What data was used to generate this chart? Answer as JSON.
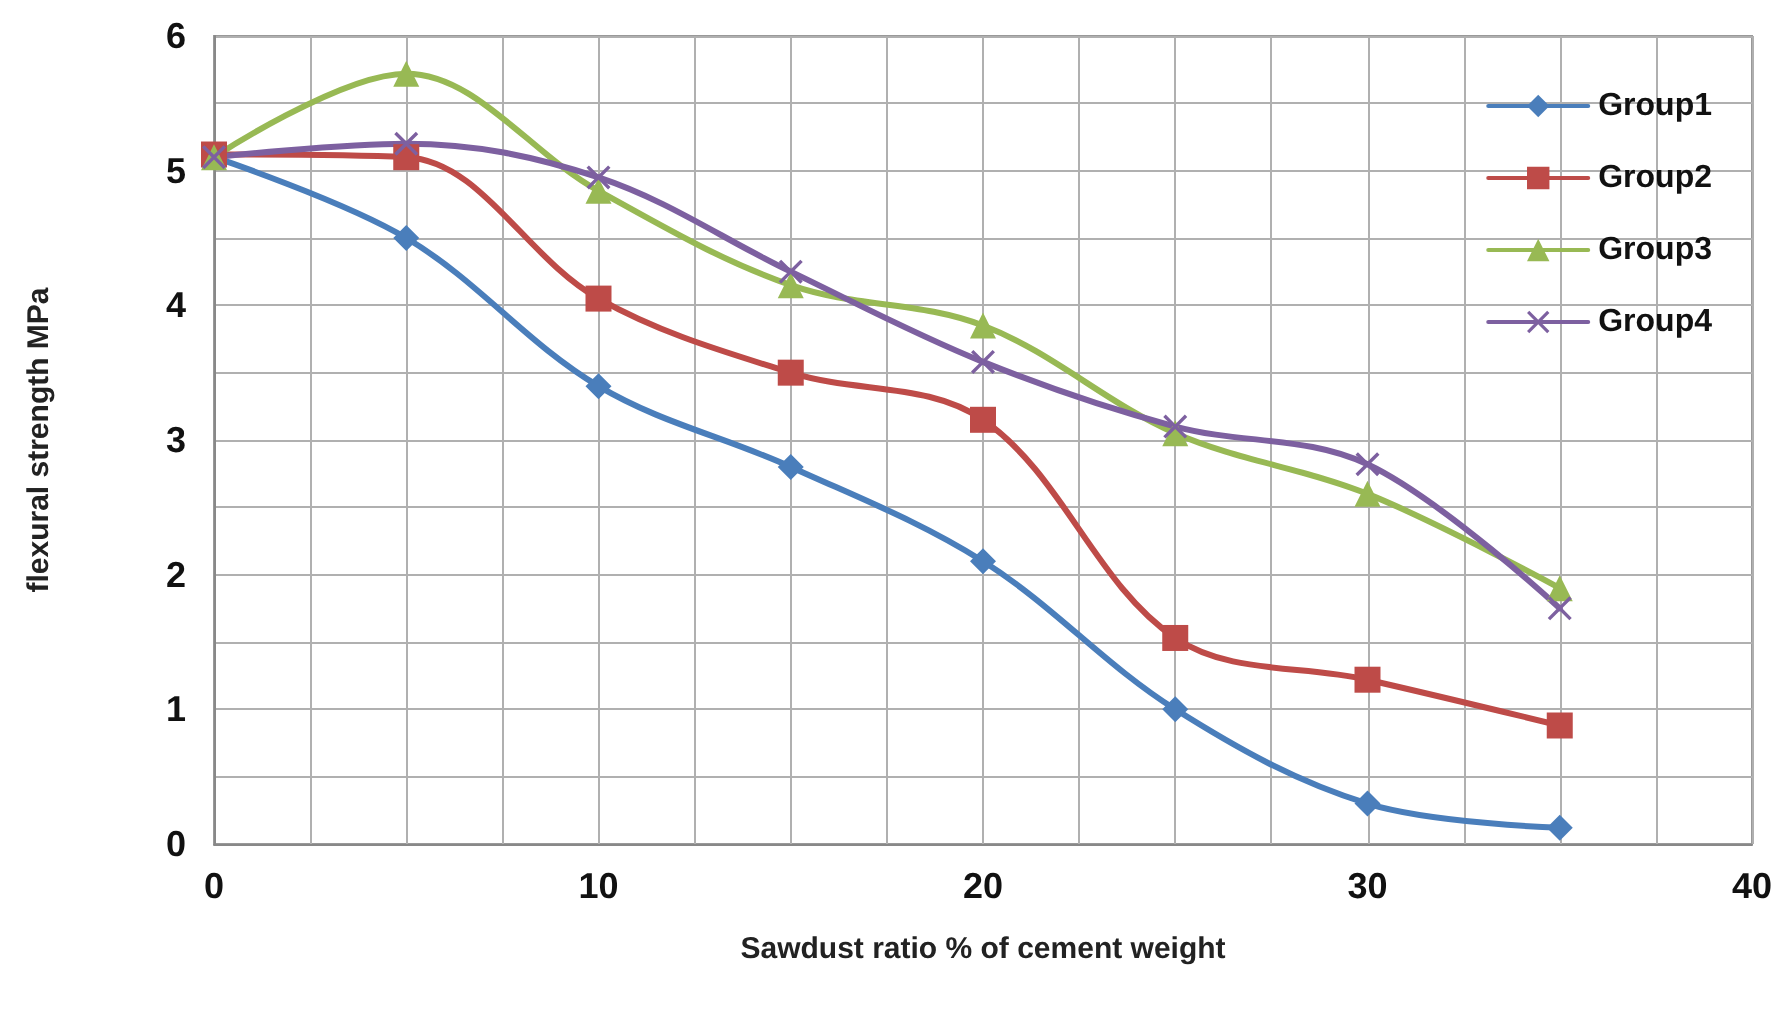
{
  "chart_data": {
    "type": "line",
    "xlabel": "Sawdust ratio % of cement weight",
    "ylabel": "flexural strength MPa",
    "x": [
      0,
      5,
      10,
      15,
      20,
      25,
      30,
      35
    ],
    "series": [
      {
        "name": "Group1",
        "color": "#4a7ebb",
        "marker": "diamond",
        "values": [
          5.1,
          4.5,
          3.4,
          2.8,
          2.1,
          1.0,
          0.3,
          0.12
        ]
      },
      {
        "name": "Group2",
        "color": "#be4b48",
        "marker": "square",
        "values": [
          5.12,
          5.1,
          4.05,
          3.5,
          3.15,
          1.53,
          1.22,
          0.88
        ]
      },
      {
        "name": "Group3",
        "color": "#98b954",
        "marker": "triangle",
        "values": [
          5.1,
          5.72,
          4.85,
          4.15,
          3.85,
          3.05,
          2.6,
          1.9
        ]
      },
      {
        "name": "Group4",
        "color": "#7d60a0",
        "marker": "cross",
        "values": [
          5.1,
          5.2,
          4.95,
          4.25,
          3.58,
          3.1,
          2.82,
          1.75
        ]
      }
    ],
    "xlim": [
      0,
      40
    ],
    "xticks": [
      0,
      10,
      20,
      30,
      40
    ],
    "ylim": [
      0,
      6
    ],
    "yticks": [
      0,
      1,
      2,
      3,
      4,
      5,
      6
    ],
    "grid": true,
    "legend": "top right",
    "line_style": "solid"
  }
}
